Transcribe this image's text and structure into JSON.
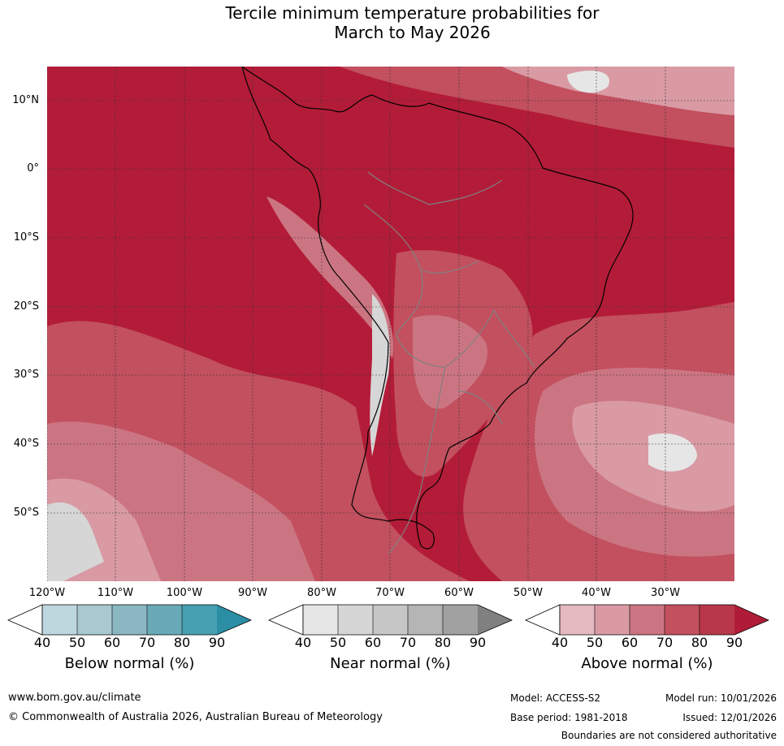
{
  "title_line1": "Tercile minimum temperature probabilities for",
  "title_line2": "March to May 2026",
  "lat_labels": [
    "10°N",
    "0°",
    "10°S",
    "20°S",
    "30°S",
    "40°S",
    "50°S"
  ],
  "lon_labels": [
    "120°W",
    "110°W",
    "100°W",
    "90°W",
    "80°W",
    "70°W",
    "60°W",
    "50°W",
    "40°W",
    "30°W"
  ],
  "colorbars": [
    {
      "title": "Below normal (%)",
      "ticks": [
        "40",
        "50",
        "60",
        "70",
        "80",
        "90"
      ],
      "colors": [
        "#bdd7de",
        "#a8c9d0",
        "#8ab7c2",
        "#6aaab8",
        "#47a0b2",
        "#2b8ea4"
      ]
    },
    {
      "title": "Near normal (%)",
      "ticks": [
        "40",
        "50",
        "60",
        "70",
        "80",
        "90"
      ],
      "colors": [
        "#e6e6e6",
        "#d6d6d6",
        "#c6c6c6",
        "#b5b5b5",
        "#a1a1a1",
        "#808080"
      ]
    },
    {
      "title": "Above normal (%)",
      "ticks": [
        "40",
        "50",
        "60",
        "70",
        "80",
        "90"
      ],
      "colors": [
        "#e4b9c0",
        "#d99aa4",
        "#cc7582",
        "#c2505f",
        "#b9374b",
        "#b01c37"
      ]
    }
  ],
  "footer": {
    "website": "www.bom.gov.au/climate",
    "copyright": "© Commonwealth of Australia 2026, Australian Bureau of Meteorology",
    "model": "Model: ACCESS-S2",
    "base_period": "Base period: 1981-2018",
    "model_run": "Model run: 10/01/2026",
    "issued": "Issued: 12/01/2026",
    "disclaimer": "Boundaries are not considered authoritative"
  }
}
